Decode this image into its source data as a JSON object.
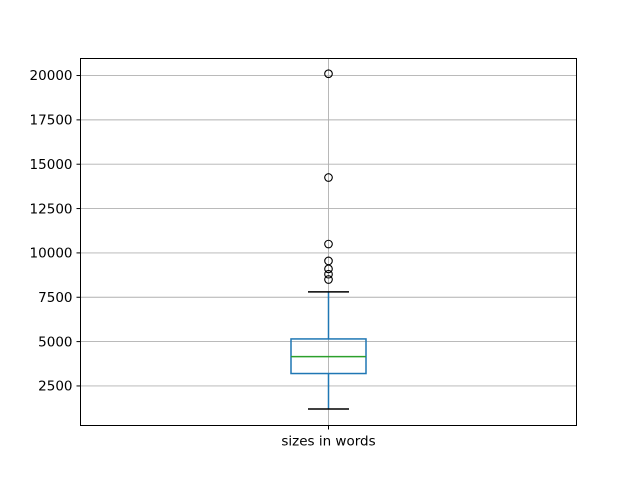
{
  "chart_data": {
    "type": "boxplot",
    "title": "",
    "xlabel": "",
    "ylabel": "",
    "categories": [
      "sizes in words"
    ],
    "series": [
      {
        "name": "sizes in words",
        "whisker_low": 1200,
        "q1": 3200,
        "median": 4150,
        "q3": 5150,
        "whisker_high": 7800,
        "outliers": [
          8500,
          8800,
          9100,
          9550,
          10500,
          14250,
          20100
        ]
      }
    ],
    "yticks": [
      2500,
      5000,
      7500,
      10000,
      12500,
      15000,
      17500,
      20000
    ],
    "ylim": [
      270,
      20960
    ],
    "grid": true,
    "legend_position": "none",
    "colors": {
      "box": "#1f77b4",
      "whisker": "#1f77b4",
      "median": "#2ca02c",
      "cap": "#000000",
      "flier_edge": "#000000",
      "grid": "#b0b0b0",
      "spine": "#000000",
      "text": "#000000",
      "background": "#ffffff"
    }
  }
}
